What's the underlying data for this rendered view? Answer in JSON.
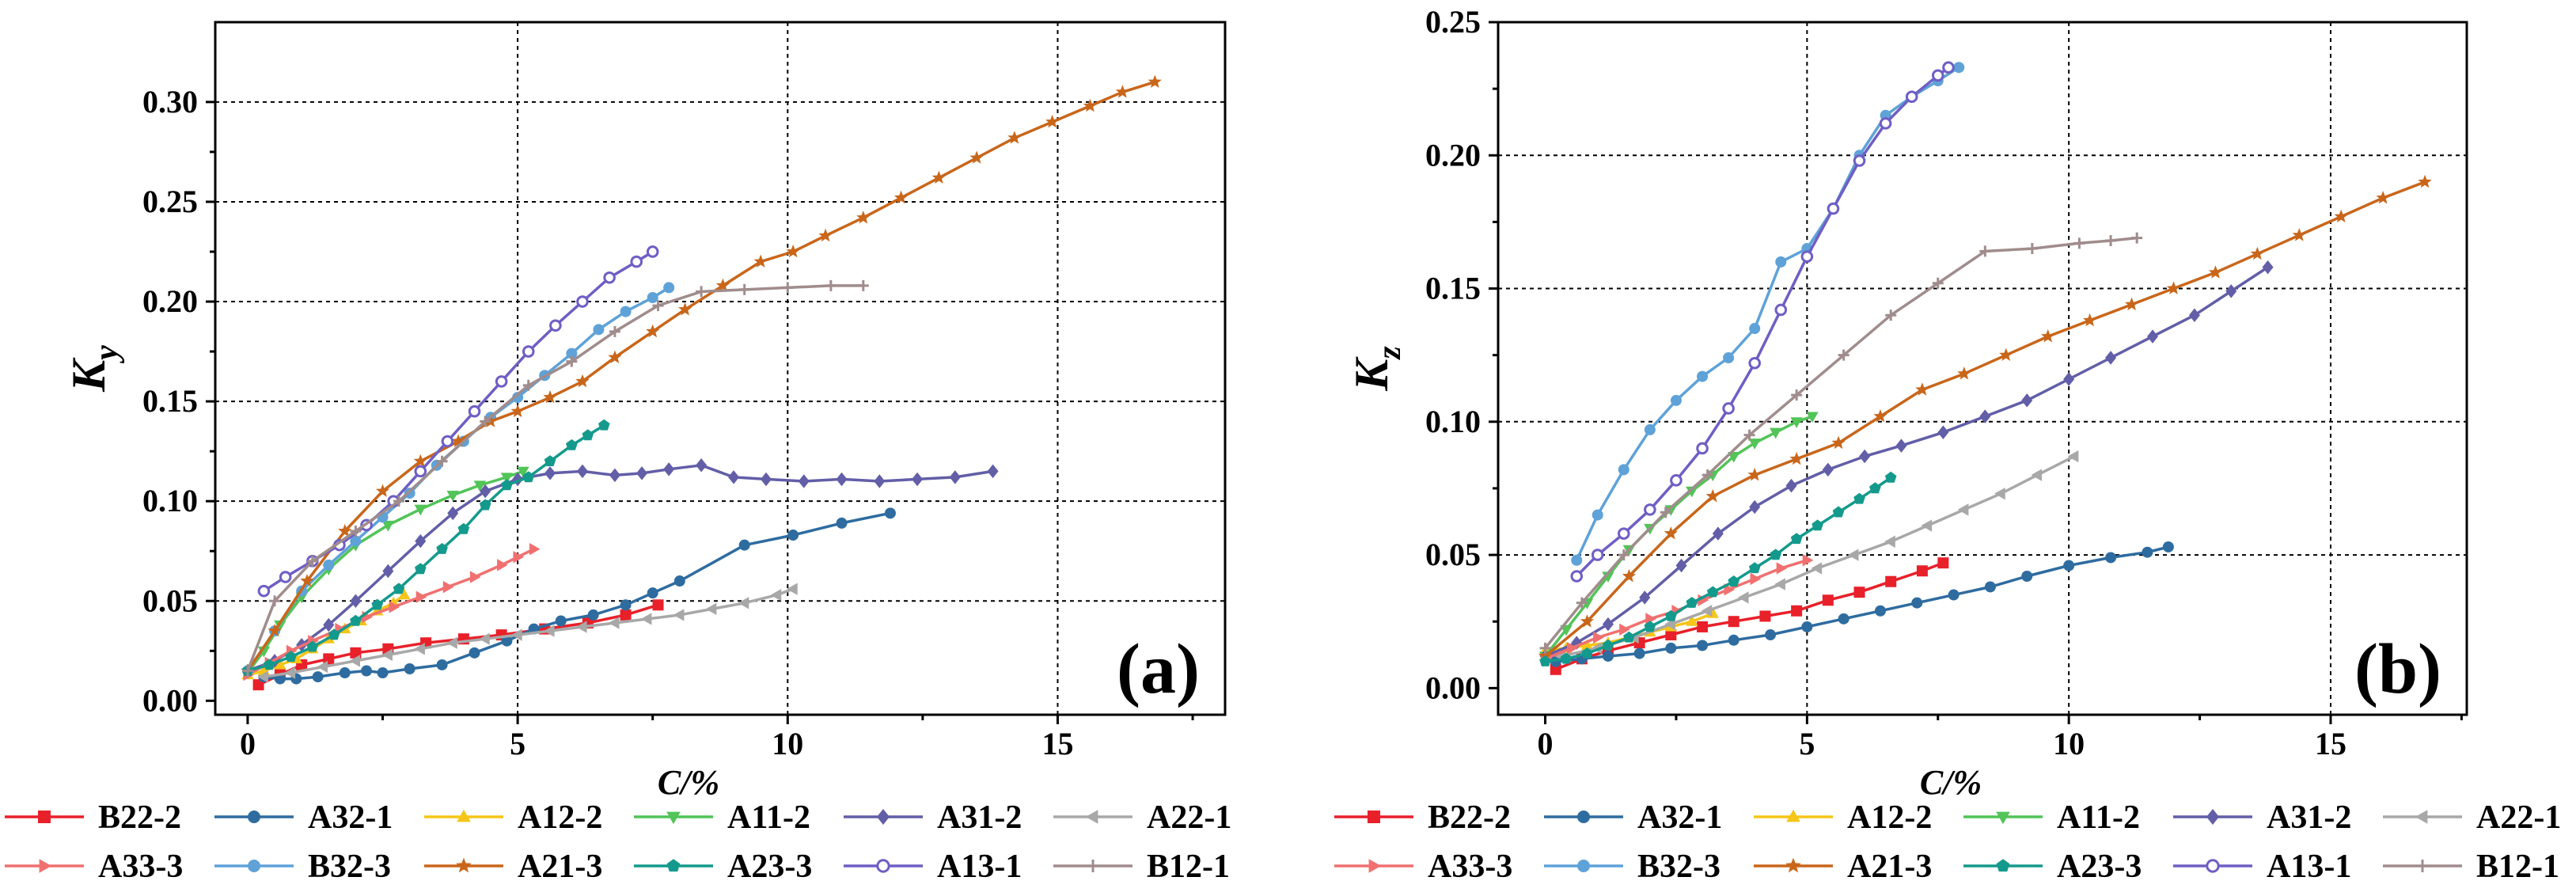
{
  "figure": {
    "legend_rows": [
      [
        "B22-2",
        "A32-1",
        "A12-2",
        "A11-2",
        "A31-2",
        "A22-1"
      ],
      [
        "A33-3",
        "B32-3",
        "A21-3",
        "A23-3",
        "A13-1",
        "B12-1"
      ]
    ]
  },
  "styles": {
    "B22-2": {
      "color": "#e8202a",
      "marker": "square"
    },
    "A32-1": {
      "color": "#2e6ca0",
      "marker": "circle"
    },
    "A12-2": {
      "color": "#f5c518",
      "marker": "triangle-up"
    },
    "A11-2": {
      "color": "#52c458",
      "marker": "triangle-down"
    },
    "A31-2": {
      "color": "#625ea7",
      "marker": "diamond"
    },
    "A22-1": {
      "color": "#a8a8a8",
      "marker": "triangle-left"
    },
    "A33-3": {
      "color": "#f07070",
      "marker": "triangle-right"
    },
    "B32-3": {
      "color": "#5ea2d8",
      "marker": "circle"
    },
    "A21-3": {
      "color": "#c9661a",
      "marker": "star"
    },
    "A23-3": {
      "color": "#149a8c",
      "marker": "pentagon"
    },
    "A13-1": {
      "color": "#6e5fc4",
      "marker": "circle-open"
    },
    "B12-1": {
      "color": "#a08c8c",
      "marker": "plus"
    }
  },
  "chart_data": [
    {
      "type": "line",
      "panel_label": "(a)",
      "ylabel_main": "K",
      "ylabel_sub": "y",
      "xlabel": "C/%",
      "xlim": [
        -0.6,
        18.1
      ],
      "ylim": [
        -0.007,
        0.34
      ],
      "xticks": [
        0,
        5,
        10,
        15
      ],
      "xtick_labels": [
        "0",
        "5",
        "10",
        "15"
      ],
      "yticks": [
        0.0,
        0.05,
        0.1,
        0.15,
        0.2,
        0.25,
        0.3
      ],
      "ytick_labels": [
        "0.00",
        "0.05",
        "0.10",
        "0.15",
        "0.20",
        "0.25",
        "0.30"
      ],
      "grid": true,
      "series": [
        {
          "name": "B22-2",
          "x": [
            0.2,
            0.6,
            1.0,
            1.5,
            2.0,
            2.6,
            3.3,
            4.0,
            4.7,
            5.5,
            6.3,
            7.0,
            7.6
          ],
          "y": [
            0.008,
            0.013,
            0.018,
            0.021,
            0.024,
            0.026,
            0.029,
            0.031,
            0.033,
            0.036,
            0.039,
            0.043,
            0.048
          ]
        },
        {
          "name": "A32-1",
          "x": [
            0.3,
            0.6,
            0.9,
            1.3,
            1.8,
            2.2,
            2.5,
            3.0,
            3.6,
            4.2,
            4.8,
            5.3,
            5.8,
            6.4,
            7.0,
            7.5,
            8.0,
            9.2,
            10.1,
            11.0,
            11.9
          ],
          "y": [
            0.012,
            0.011,
            0.011,
            0.012,
            0.014,
            0.015,
            0.014,
            0.016,
            0.018,
            0.024,
            0.03,
            0.036,
            0.04,
            0.043,
            0.048,
            0.054,
            0.06,
            0.078,
            0.083,
            0.089,
            0.094
          ]
        },
        {
          "name": "A12-2",
          "x": [
            0.0,
            0.3,
            0.6,
            0.9,
            1.2,
            1.5,
            1.8,
            2.1,
            2.4,
            2.7,
            2.9
          ],
          "y": [
            0.013,
            0.015,
            0.018,
            0.021,
            0.026,
            0.031,
            0.036,
            0.04,
            0.045,
            0.049,
            0.053
          ]
        },
        {
          "name": "A11-2",
          "x": [
            0.0,
            0.3,
            0.6,
            1.0,
            1.5,
            2.0,
            2.6,
            3.2,
            3.8,
            4.3,
            4.8,
            5.1
          ],
          "y": [
            0.014,
            0.025,
            0.038,
            0.052,
            0.066,
            0.078,
            0.088,
            0.096,
            0.103,
            0.108,
            0.112,
            0.115
          ]
        },
        {
          "name": "A31-2",
          "x": [
            0.0,
            0.5,
            1.0,
            1.5,
            2.0,
            2.6,
            3.2,
            3.8,
            4.4,
            5.0,
            5.6,
            6.2,
            6.8,
            7.3,
            7.8,
            8.4,
            9.0,
            9.6,
            10.3,
            11.0,
            11.7,
            12.4,
            13.1,
            13.8
          ],
          "y": [
            0.015,
            0.02,
            0.028,
            0.038,
            0.05,
            0.065,
            0.08,
            0.094,
            0.105,
            0.111,
            0.114,
            0.115,
            0.113,
            0.114,
            0.116,
            0.118,
            0.112,
            0.111,
            0.11,
            0.111,
            0.11,
            0.111,
            0.112,
            0.115
          ]
        },
        {
          "name": "A22-1",
          "x": [
            0.3,
            0.8,
            1.4,
            2.0,
            2.6,
            3.2,
            3.8,
            4.4,
            5.0,
            5.6,
            6.2,
            6.8,
            7.4,
            8.0,
            8.6,
            9.2,
            9.8,
            10.1
          ],
          "y": [
            0.012,
            0.014,
            0.017,
            0.02,
            0.023,
            0.026,
            0.029,
            0.031,
            0.033,
            0.035,
            0.037,
            0.039,
            0.041,
            0.043,
            0.046,
            0.049,
            0.053,
            0.056
          ]
        },
        {
          "name": "A33-3",
          "x": [
            0.0,
            0.4,
            0.8,
            1.2,
            1.7,
            2.2,
            2.7,
            3.2,
            3.7,
            4.2,
            4.7,
            5.0,
            5.3
          ],
          "y": [
            0.013,
            0.019,
            0.025,
            0.03,
            0.036,
            0.042,
            0.047,
            0.052,
            0.057,
            0.062,
            0.068,
            0.072,
            0.076
          ]
        },
        {
          "name": "B32-3",
          "x": [
            0.0,
            0.5,
            1.0,
            1.5,
            2.0,
            2.5,
            3.0,
            3.5,
            4.0,
            4.5,
            5.0,
            5.5,
            6.0,
            6.5,
            7.0,
            7.5,
            7.8
          ],
          "y": [
            0.015,
            0.035,
            0.055,
            0.068,
            0.08,
            0.092,
            0.104,
            0.118,
            0.13,
            0.142,
            0.152,
            0.163,
            0.174,
            0.186,
            0.195,
            0.202,
            0.207
          ]
        },
        {
          "name": "A21-3",
          "x": [
            0.0,
            0.5,
            1.1,
            1.8,
            2.5,
            3.2,
            3.9,
            4.5,
            5.0,
            5.6,
            6.2,
            6.8,
            7.5,
            8.1,
            8.8,
            9.5,
            10.1,
            10.7,
            11.4,
            12.1,
            12.8,
            13.5,
            14.2,
            14.9,
            15.6,
            16.2,
            16.8
          ],
          "y": [
            0.015,
            0.035,
            0.06,
            0.085,
            0.105,
            0.12,
            0.13,
            0.14,
            0.145,
            0.152,
            0.16,
            0.172,
            0.185,
            0.196,
            0.208,
            0.22,
            0.225,
            0.233,
            0.242,
            0.252,
            0.262,
            0.272,
            0.282,
            0.29,
            0.298,
            0.305,
            0.31
          ]
        },
        {
          "name": "A23-3",
          "x": [
            0.0,
            0.4,
            0.8,
            1.2,
            1.6,
            2.0,
            2.4,
            2.8,
            3.2,
            3.6,
            4.0,
            4.4,
            4.8,
            5.2,
            5.6,
            6.0,
            6.3,
            6.6
          ],
          "y": [
            0.015,
            0.018,
            0.022,
            0.027,
            0.033,
            0.04,
            0.048,
            0.056,
            0.066,
            0.076,
            0.086,
            0.098,
            0.108,
            0.112,
            0.12,
            0.128,
            0.133,
            0.138
          ]
        },
        {
          "name": "A13-1",
          "x": [
            0.3,
            0.7,
            1.2,
            1.7,
            2.2,
            2.7,
            3.2,
            3.7,
            4.2,
            4.7,
            5.2,
            5.7,
            6.2,
            6.7,
            7.2,
            7.5
          ],
          "y": [
            0.055,
            0.062,
            0.07,
            0.078,
            0.088,
            0.1,
            0.115,
            0.13,
            0.145,
            0.16,
            0.175,
            0.188,
            0.2,
            0.212,
            0.22,
            0.225
          ]
        },
        {
          "name": "B12-1",
          "x": [
            0.0,
            0.5,
            1.2,
            2.0,
            2.8,
            3.6,
            4.4,
            5.2,
            6.0,
            6.8,
            7.6,
            8.4,
            9.2,
            10.0,
            10.8,
            11.4
          ],
          "y": [
            0.015,
            0.05,
            0.07,
            0.085,
            0.1,
            0.12,
            0.14,
            0.158,
            0.17,
            0.185,
            0.198,
            0.205,
            0.206,
            0.207,
            0.208,
            0.208
          ]
        }
      ]
    },
    {
      "type": "line",
      "panel_label": "(b)",
      "ylabel_main": "K",
      "ylabel_sub": "z",
      "xlabel": "C/%",
      "xlim": [
        -0.9,
        17.6
      ],
      "ylim": [
        -0.01,
        0.25
      ],
      "xticks": [
        0,
        5,
        10,
        15
      ],
      "xtick_labels": [
        "0",
        "5",
        "10",
        "15"
      ],
      "yticks": [
        0.0,
        0.05,
        0.1,
        0.15,
        0.2,
        0.25
      ],
      "ytick_labels": [
        "0.00",
        "0.05",
        "0.10",
        "0.15",
        "0.20",
        "0.25"
      ],
      "grid": true,
      "series": [
        {
          "name": "B22-2",
          "x": [
            0.2,
            0.7,
            1.2,
            1.8,
            2.4,
            3.0,
            3.6,
            4.2,
            4.8,
            5.4,
            6.0,
            6.6,
            7.2,
            7.6
          ],
          "y": [
            0.007,
            0.011,
            0.014,
            0.017,
            0.02,
            0.023,
            0.025,
            0.027,
            0.029,
            0.033,
            0.036,
            0.04,
            0.044,
            0.047
          ]
        },
        {
          "name": "A32-1",
          "x": [
            0.2,
            0.7,
            1.2,
            1.8,
            2.4,
            3.0,
            3.6,
            4.3,
            5.0,
            5.7,
            6.4,
            7.1,
            7.8,
            8.5,
            9.2,
            10.0,
            10.8,
            11.5,
            11.9
          ],
          "y": [
            0.01,
            0.011,
            0.012,
            0.013,
            0.015,
            0.016,
            0.018,
            0.02,
            0.023,
            0.026,
            0.029,
            0.032,
            0.035,
            0.038,
            0.042,
            0.046,
            0.049,
            0.051,
            0.053
          ]
        },
        {
          "name": "A12-2",
          "x": [
            0.0,
            0.4,
            0.8,
            1.2,
            1.6,
            2.0,
            2.4,
            2.8,
            3.2
          ],
          "y": [
            0.014,
            0.015,
            0.016,
            0.017,
            0.019,
            0.021,
            0.023,
            0.025,
            0.028
          ]
        },
        {
          "name": "A11-2",
          "x": [
            0.0,
            0.4,
            0.8,
            1.2,
            1.6,
            2.0,
            2.4,
            2.8,
            3.2,
            3.6,
            4.0,
            4.4,
            4.8,
            5.1
          ],
          "y": [
            0.012,
            0.022,
            0.032,
            0.042,
            0.052,
            0.06,
            0.067,
            0.074,
            0.08,
            0.087,
            0.092,
            0.096,
            0.1,
            0.102
          ]
        },
        {
          "name": "A31-2",
          "x": [
            0.0,
            0.6,
            1.2,
            1.9,
            2.6,
            3.3,
            4.0,
            4.7,
            5.4,
            6.1,
            6.8,
            7.6,
            8.4,
            9.2,
            10.0,
            10.8,
            11.6,
            12.4,
            13.1,
            13.8
          ],
          "y": [
            0.012,
            0.017,
            0.024,
            0.034,
            0.046,
            0.058,
            0.068,
            0.076,
            0.082,
            0.087,
            0.091,
            0.096,
            0.102,
            0.108,
            0.116,
            0.124,
            0.132,
            0.14,
            0.149,
            0.158
          ]
        },
        {
          "name": "A22-1",
          "x": [
            0.3,
            1.0,
            1.7,
            2.4,
            3.1,
            3.8,
            4.5,
            5.2,
            5.9,
            6.6,
            7.3,
            8.0,
            8.7,
            9.4,
            10.1
          ],
          "y": [
            0.012,
            0.015,
            0.019,
            0.024,
            0.029,
            0.034,
            0.039,
            0.045,
            0.05,
            0.055,
            0.061,
            0.067,
            0.073,
            0.08,
            0.087
          ]
        },
        {
          "name": "A33-3",
          "x": [
            0.0,
            0.5,
            1.0,
            1.5,
            2.0,
            2.5,
            3.0,
            3.5,
            4.0,
            4.5,
            5.0
          ],
          "y": [
            0.011,
            0.015,
            0.019,
            0.022,
            0.026,
            0.029,
            0.033,
            0.037,
            0.041,
            0.045,
            0.048
          ]
        },
        {
          "name": "B32-3",
          "x": [
            0.6,
            1.0,
            1.5,
            2.0,
            2.5,
            3.0,
            3.5,
            4.0,
            4.5,
            5.0,
            5.5,
            6.0,
            6.5,
            7.0,
            7.5,
            7.9
          ],
          "y": [
            0.048,
            0.065,
            0.082,
            0.097,
            0.108,
            0.117,
            0.124,
            0.135,
            0.16,
            0.165,
            0.18,
            0.2,
            0.215,
            0.222,
            0.228,
            0.233
          ]
        },
        {
          "name": "A21-3",
          "x": [
            0.0,
            0.8,
            1.6,
            2.4,
            3.2,
            4.0,
            4.8,
            5.6,
            6.4,
            7.2,
            8.0,
            8.8,
            9.6,
            10.4,
            11.2,
            12.0,
            12.8,
            13.6,
            14.4,
            15.2,
            16.0,
            16.8
          ],
          "y": [
            0.012,
            0.025,
            0.042,
            0.058,
            0.072,
            0.08,
            0.086,
            0.092,
            0.102,
            0.112,
            0.118,
            0.125,
            0.132,
            0.138,
            0.144,
            0.15,
            0.156,
            0.163,
            0.17,
            0.177,
            0.184,
            0.19
          ]
        },
        {
          "name": "A23-3",
          "x": [
            0.0,
            0.4,
            0.8,
            1.2,
            1.6,
            2.0,
            2.4,
            2.8,
            3.2,
            3.6,
            4.0,
            4.4,
            4.8,
            5.2,
            5.6,
            6.0,
            6.3,
            6.6
          ],
          "y": [
            0.01,
            0.011,
            0.013,
            0.016,
            0.019,
            0.023,
            0.027,
            0.032,
            0.036,
            0.04,
            0.045,
            0.05,
            0.056,
            0.061,
            0.066,
            0.071,
            0.075,
            0.079
          ]
        },
        {
          "name": "A13-1",
          "x": [
            0.6,
            1.0,
            1.5,
            2.0,
            2.5,
            3.0,
            3.5,
            4.0,
            4.5,
            5.0,
            5.5,
            6.0,
            6.5,
            7.0,
            7.5,
            7.7
          ],
          "y": [
            0.042,
            0.05,
            0.058,
            0.067,
            0.078,
            0.09,
            0.105,
            0.122,
            0.142,
            0.162,
            0.18,
            0.198,
            0.212,
            0.222,
            0.23,
            0.233
          ]
        },
        {
          "name": "B12-1",
          "x": [
            0.0,
            0.7,
            1.5,
            2.3,
            3.1,
            3.9,
            4.8,
            5.7,
            6.6,
            7.5,
            8.4,
            9.3,
            10.2,
            10.8,
            11.3
          ],
          "y": [
            0.015,
            0.032,
            0.05,
            0.066,
            0.08,
            0.095,
            0.11,
            0.125,
            0.14,
            0.152,
            0.164,
            0.165,
            0.167,
            0.168,
            0.169
          ]
        }
      ]
    }
  ]
}
